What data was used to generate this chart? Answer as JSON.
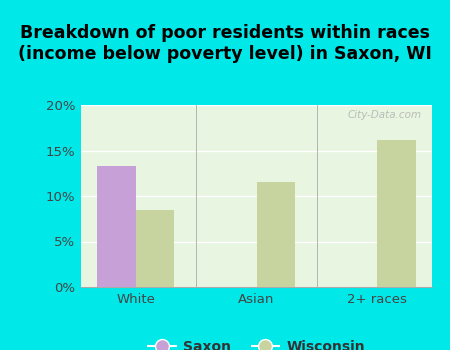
{
  "title": "Breakdown of poor residents within races\n(income below poverty level) in Saxon, WI",
  "categories": [
    "White",
    "Asian",
    "2+ races"
  ],
  "saxon_values": [
    13.3,
    0,
    0
  ],
  "wisconsin_values": [
    8.5,
    11.5,
    16.2
  ],
  "saxon_color": "#c8a0d8",
  "wisconsin_color": "#c8d4a0",
  "background_color": "#00e8e8",
  "plot_bg": "#e8f5e0",
  "ylim": [
    0,
    20
  ],
  "yticks": [
    0,
    5,
    10,
    15,
    20
  ],
  "yticklabels": [
    "0%",
    "5%",
    "10%",
    "15%",
    "20%"
  ],
  "bar_width": 0.32,
  "title_fontsize": 12.5,
  "tick_fontsize": 9.5,
  "legend_fontsize": 10
}
